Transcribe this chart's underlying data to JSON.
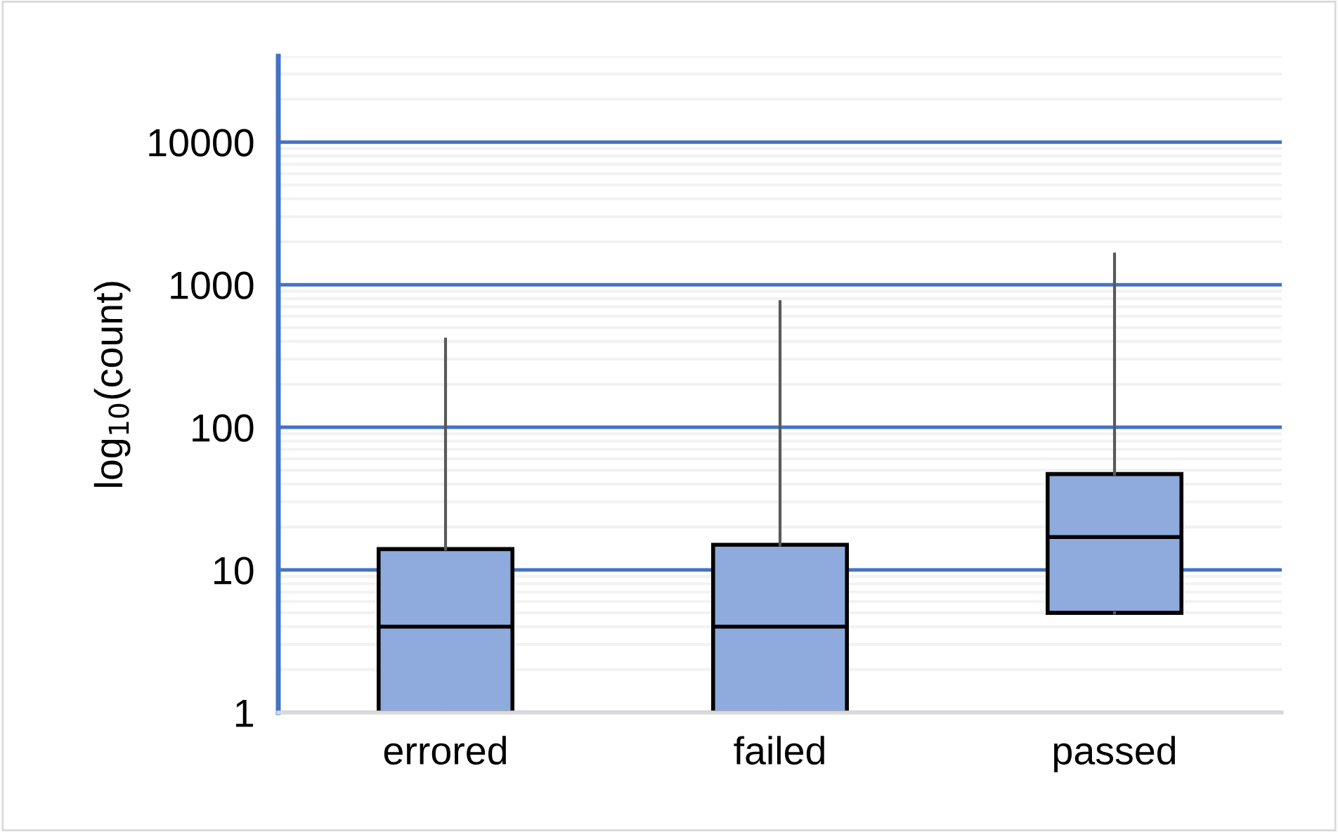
{
  "chart_data": {
    "type": "box",
    "ylabel": "log$_{10}$(count)",
    "categories": [
      "errored",
      "failed",
      "passed"
    ],
    "boxes": [
      {
        "low": 1,
        "q1": 1,
        "median": 4,
        "q3": 14,
        "high": 415
      },
      {
        "low": 1,
        "q1": 1,
        "median": 4,
        "q3": 15,
        "high": 760
      },
      {
        "low": 5,
        "q1": 5,
        "median": 17,
        "q3": 47,
        "high": 1640
      }
    ],
    "color": "#8faadc",
    "log": true,
    "ylim": [
      1,
      40000
    ],
    "yticks": [
      1,
      10,
      100,
      1000,
      10000
    ],
    "grid": "y"
  }
}
